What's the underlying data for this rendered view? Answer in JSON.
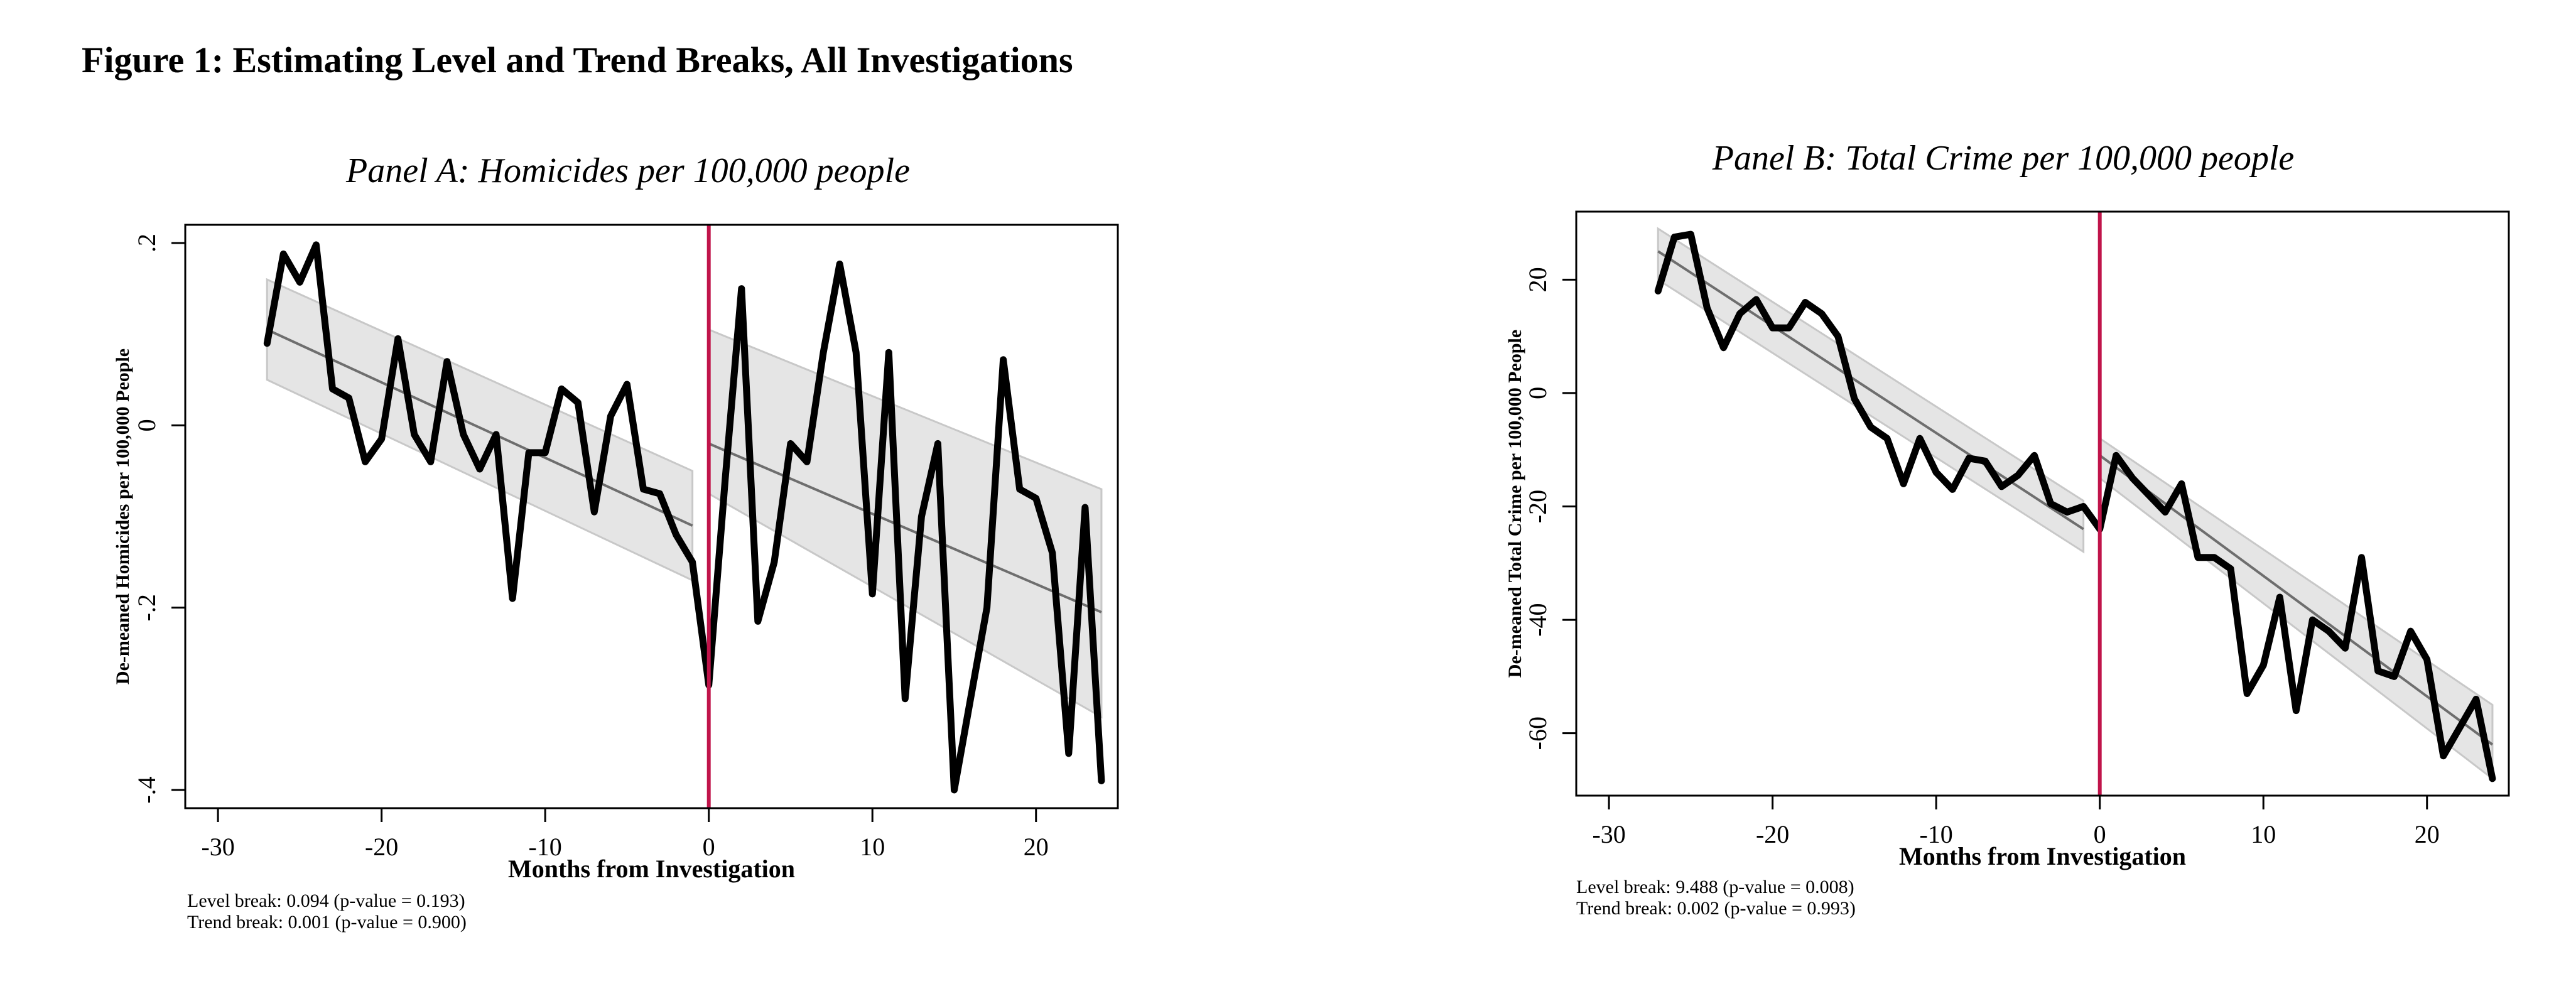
{
  "figure_title": "Figure 1: Estimating Level and Trend Breaks, All Investigations",
  "chart_data": [
    {
      "type": "line",
      "title": "Panel A: Homicides per 100,000 people",
      "xlabel": "Months from Investigation",
      "ylabel": "De-meaned Homicides per 100,000 People",
      "xlim": [
        -32,
        25
      ],
      "ylim": [
        -0.42,
        0.22
      ],
      "xticks": [
        -30,
        -20,
        -10,
        0,
        10,
        20
      ],
      "xtick_labels": [
        "-30",
        "-20",
        "-10",
        "0",
        "10",
        "20"
      ],
      "yticks": [
        0.2,
        0,
        -0.2,
        -0.4
      ],
      "ytick_labels": [
        ".2",
        "0",
        "-.2",
        "-.4"
      ],
      "break_x": 0,
      "grid": false,
      "legend": "none",
      "series": [
        {
          "x": [
            -27,
            -26,
            -25,
            -24,
            -23,
            -22,
            -21,
            -20,
            -19,
            -18,
            -17,
            -16,
            -15,
            -14,
            -13,
            -12,
            -11,
            -10,
            -9,
            -8,
            -7,
            -6,
            -5,
            -4,
            -3,
            -2,
            -1,
            0,
            1,
            2,
            3,
            4,
            5,
            6,
            7,
            8,
            9,
            10,
            11,
            12,
            13,
            14,
            15,
            16,
            17,
            18,
            19,
            20,
            21,
            22,
            23,
            24
          ],
          "y": [
            0.09,
            0.188,
            0.157,
            0.198,
            0.04,
            0.03,
            -0.04,
            -0.015,
            0.095,
            -0.01,
            -0.04,
            0.07,
            -0.01,
            -0.048,
            -0.01,
            -0.19,
            -0.03,
            -0.03,
            0.04,
            0.025,
            -0.095,
            0.01,
            0.045,
            -0.07,
            -0.075,
            -0.12,
            -0.15,
            -0.285,
            -0.06,
            0.15,
            -0.215,
            -0.15,
            -0.02,
            -0.04,
            0.08,
            0.177,
            0.08,
            -0.185,
            0.08,
            -0.3,
            -0.1,
            -0.02,
            -0.4,
            -0.3,
            -0.2,
            0.072,
            -0.07,
            -0.08,
            -0.14,
            -0.36,
            -0.09,
            -0.39
          ]
        }
      ],
      "trend_pre": {
        "x": [
          -27,
          -1
        ],
        "y": [
          0.105,
          -0.11
        ]
      },
      "trend_post": {
        "x": [
          0,
          24
        ],
        "y": [
          -0.02,
          -0.205
        ]
      },
      "band_pre": {
        "x": [
          -27,
          -1
        ],
        "lo": [
          0.05,
          -0.17
        ],
        "hi": [
          0.16,
          -0.05
        ]
      },
      "band_post": {
        "x": [
          0,
          24
        ],
        "lo": [
          -0.075,
          -0.32
        ],
        "hi": [
          0.105,
          -0.07
        ]
      },
      "notes": [
        "Level break: 0.094 (p-value = 0.193)",
        "Trend break: 0.001 (p-value = 0.900)"
      ]
    },
    {
      "type": "line",
      "title": "Panel B: Total Crime per 100,000 people",
      "xlabel": "Months from Investigation",
      "ylabel": "De-meaned Total Crime per 100,000 People",
      "xlim": [
        -32,
        25
      ],
      "ylim": [
        -71,
        32
      ],
      "xticks": [
        -30,
        -20,
        -10,
        0,
        10,
        20
      ],
      "xtick_labels": [
        "-30",
        "-20",
        "-10",
        "0",
        "10",
        "20"
      ],
      "yticks": [
        20,
        0,
        -20,
        -40,
        -60
      ],
      "ytick_labels": [
        "20",
        "0",
        "-20",
        "-40",
        "-60"
      ],
      "break_x": 0,
      "grid": false,
      "legend": "none",
      "series": [
        {
          "x": [
            -27,
            -26,
            -25,
            -24,
            -23,
            -22,
            -21,
            -20,
            -19,
            -18,
            -17,
            -16,
            -15,
            -14,
            -13,
            -12,
            -11,
            -10,
            -9,
            -8,
            -7,
            -6,
            -5,
            -4,
            -3,
            -2,
            -1,
            0,
            1,
            2,
            3,
            4,
            5,
            6,
            7,
            8,
            9,
            10,
            11,
            12,
            13,
            14,
            15,
            16,
            17,
            18,
            19,
            20,
            21,
            22,
            23,
            24
          ],
          "y": [
            18,
            27.5,
            28,
            15,
            8,
            14,
            16.5,
            11.5,
            11.5,
            16,
            14,
            10,
            -1,
            -6,
            -8,
            -16,
            -8,
            -14,
            -17,
            -11.5,
            -12,
            -16.5,
            -14.5,
            -11,
            -19.5,
            -21,
            -20,
            -24,
            -11,
            -15,
            -18,
            -21,
            -16,
            -29,
            -29,
            -31,
            -53,
            -48,
            -36,
            -56,
            -40,
            -42,
            -45,
            -29,
            -49,
            -50,
            -42,
            -47,
            -64,
            -59,
            -54,
            -68
          ]
        }
      ],
      "trend_pre": {
        "x": [
          -27,
          -1
        ],
        "y": [
          25,
          -24
        ]
      },
      "trend_post": {
        "x": [
          0,
          24
        ],
        "y": [
          -11,
          -62
        ]
      },
      "band_pre": {
        "x": [
          -27,
          -1
        ],
        "lo": [
          20,
          -28
        ],
        "hi": [
          29,
          -19
        ]
      },
      "band_post": {
        "x": [
          0,
          24
        ],
        "lo": [
          -15,
          -68
        ],
        "hi": [
          -8,
          -55
        ]
      },
      "notes": [
        "Level break: 9.488 (p-value = 0.008)",
        "Trend break: 0.002 (p-value = 0.993)"
      ]
    }
  ]
}
